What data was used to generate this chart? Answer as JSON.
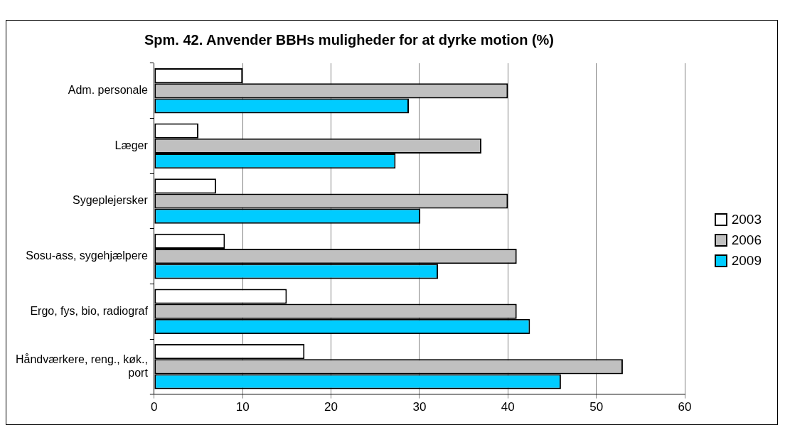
{
  "chart_data": {
    "type": "bar",
    "orientation": "horizontal",
    "title": "Spm. 42. Anvender BBHs muligheder for at dyrke motion (%)",
    "categories": [
      "Adm. personale",
      "Læger",
      "Sygeplejersker",
      "Sosu-ass, sygehjælpere",
      "Ergo, fys, bio, radiograf",
      "Håndværkere, reng., køk., port"
    ],
    "series": [
      {
        "name": "2003",
        "color": "#ffffff",
        "values": [
          10,
          5,
          7,
          8,
          15,
          17
        ]
      },
      {
        "name": "2006",
        "color": "#c0c0c0",
        "values": [
          40,
          37,
          40,
          41,
          41,
          53
        ]
      },
      {
        "name": "2009",
        "color": "#00ccff",
        "values": [
          28.8,
          27.3,
          30.1,
          32.1,
          42.5,
          46
        ]
      }
    ],
    "xlim": [
      0,
      60
    ],
    "xticks": [
      0,
      10,
      20,
      30,
      40,
      50,
      60
    ],
    "grid": "x",
    "legend": "right"
  }
}
